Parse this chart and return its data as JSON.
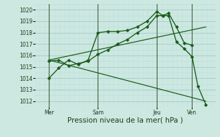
{
  "background_color": "#cce8e0",
  "grid_color_major": "#aacccc",
  "grid_color_minor": "#bbdddd",
  "line_color": "#1a5c1a",
  "ylim": [
    1011.5,
    1020.5
  ],
  "xlim": [
    -0.2,
    9.0
  ],
  "ylabel_ticks": [
    1012,
    1013,
    1014,
    1015,
    1016,
    1017,
    1018,
    1019,
    1020
  ],
  "xlabel": "Pression niveau de la mer( hPa )",
  "day_labels": [
    "Mer",
    "Sam",
    "Jeu",
    "Ven"
  ],
  "day_positions": [
    0.5,
    3.0,
    6.0,
    7.8
  ],
  "vline_positions": [
    0.5,
    3.0,
    6.0,
    7.8
  ],
  "series": [
    {
      "x": [
        0.5,
        1.0,
        1.5,
        2.0,
        2.5,
        3.0,
        3.5,
        4.0,
        4.5,
        5.0,
        5.5,
        6.0,
        6.3,
        6.6,
        7.0,
        7.4,
        7.8
      ],
      "y": [
        1014.0,
        1014.9,
        1015.6,
        1015.2,
        1015.6,
        1018.0,
        1018.1,
        1018.1,
        1018.2,
        1018.5,
        1019.0,
        1019.85,
        1019.5,
        1019.7,
        1018.5,
        1017.1,
        1016.9
      ],
      "marker": "D",
      "ms": 2.5,
      "lw": 1.0
    },
    {
      "x": [
        0.5,
        1.0,
        1.5,
        2.0,
        2.5,
        3.0,
        3.5,
        4.0,
        4.5,
        5.0,
        5.5,
        6.0,
        6.3,
        6.6,
        7.0,
        7.4,
        7.8,
        8.1,
        8.5
      ],
      "y": [
        1015.5,
        1015.6,
        1015.1,
        1015.3,
        1015.5,
        1016.1,
        1016.5,
        1017.0,
        1017.4,
        1018.0,
        1018.5,
        1019.5,
        1019.5,
        1019.5,
        1017.2,
        1016.6,
        1015.9,
        1013.3,
        1011.7
      ],
      "marker": "D",
      "ms": 2.5,
      "lw": 1.0
    },
    {
      "x": [
        0.5,
        8.5
      ],
      "y": [
        1015.6,
        1018.5
      ],
      "marker": null,
      "ms": 0,
      "lw": 0.9
    },
    {
      "x": [
        0.5,
        8.5
      ],
      "y": [
        1015.6,
        1012.0
      ],
      "marker": null,
      "ms": 0,
      "lw": 0.9
    }
  ],
  "figsize": [
    3.2,
    2.0
  ],
  "dpi": 100,
  "tick_fontsize": 5.5,
  "label_fontsize": 7.5
}
